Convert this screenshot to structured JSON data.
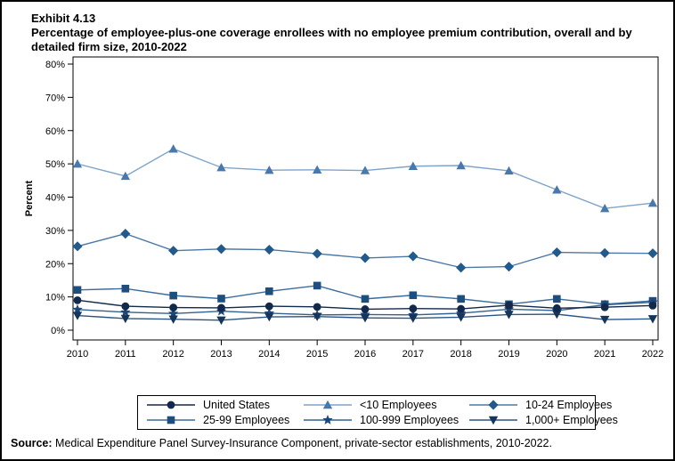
{
  "header": {
    "exhibit_label": "Exhibit 4.13",
    "title": "Percentage of employee-plus-one coverage enrollees with no employee premium contribution, overall and by detailed firm size, 2010-2022"
  },
  "chart_data": {
    "type": "line",
    "title": "Percentage of employee-plus-one coverage enrollees with no employee premium contribution, overall and by detailed firm size, 2010-2022",
    "xlabel": "",
    "ylabel": "Percent",
    "ylim": [
      0,
      80
    ],
    "ytick_step": 10,
    "ytick_suffix": "%",
    "grid": "off",
    "legend_position": "bottom",
    "categories": [
      2010,
      2011,
      2012,
      2013,
      2014,
      2015,
      2016,
      2017,
      2018,
      2019,
      2020,
      2021,
      2022
    ],
    "series": [
      {
        "name": "United States",
        "marker": "circle",
        "color": "#13294b",
        "line_color": "#13294b",
        "values": [
          9.0,
          7.2,
          6.8,
          6.7,
          7.2,
          7.0,
          6.3,
          6.5,
          6.4,
          7.5,
          6.6,
          6.9,
          7.4
        ]
      },
      {
        "name": "<10 Employees",
        "marker": "triangle-up",
        "color": "#4878ac",
        "line_color": "#7fa3c9",
        "values": [
          50.0,
          46.3,
          54.5,
          48.9,
          48.1,
          48.2,
          48.0,
          49.3,
          49.5,
          47.9,
          42.2,
          36.6,
          38.2
        ]
      },
      {
        "name": "10-24 Employees",
        "marker": "diamond",
        "color": "#225a8c",
        "line_color": "#4d78a5",
        "values": [
          25.2,
          29.0,
          23.9,
          24.4,
          24.2,
          23.0,
          21.7,
          22.2,
          18.8,
          19.1,
          23.4,
          23.2,
          23.1
        ]
      },
      {
        "name": "25-99 Employees",
        "marker": "square",
        "color": "#1e4e7d",
        "line_color": "#3c6c9c",
        "values": [
          12.1,
          12.5,
          10.4,
          9.5,
          11.7,
          13.4,
          9.4,
          10.5,
          9.4,
          7.8,
          9.4,
          7.8,
          8.8
        ]
      },
      {
        "name": "100-999 Employees",
        "marker": "star",
        "color": "#1c4676",
        "line_color": "#33618f",
        "values": [
          6.2,
          5.4,
          5.0,
          5.7,
          5.1,
          4.6,
          4.7,
          4.6,
          5.1,
          6.3,
          5.9,
          7.6,
          8.4
        ]
      },
      {
        "name": "1,000+ Employees",
        "marker": "triangle-down",
        "color": "#16355a",
        "line_color": "#2b5584",
        "values": [
          4.4,
          3.5,
          3.3,
          3.0,
          4.0,
          4.1,
          3.7,
          3.6,
          3.9,
          4.7,
          4.8,
          3.2,
          3.4
        ]
      }
    ]
  },
  "footer": {
    "source_label": "Source:",
    "source_text": "Medical Expenditure Panel Survey-Insurance Component, private-sector establishments, 2010-2022."
  }
}
